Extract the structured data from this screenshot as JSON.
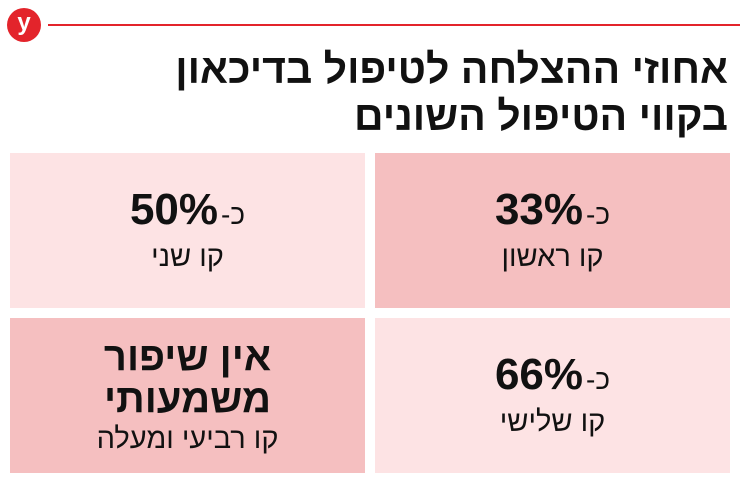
{
  "header": {
    "logo": "y",
    "title": [
      "אחוזי ההצלחה לטיפול בדיכאון",
      "בקווי הטיפול השונים"
    ]
  },
  "cells": [
    {
      "prefix": "כ-",
      "value": "33%",
      "label": "קו ראשון"
    },
    {
      "prefix": "כ-",
      "value": "50%",
      "label": "קו שני"
    },
    {
      "prefix": "כ-",
      "value": "66%",
      "label": "קו שלישי"
    },
    {
      "text": [
        "אין שיפור",
        "משמעותי"
      ],
      "label": "קו רביעי ומעלה"
    }
  ]
}
